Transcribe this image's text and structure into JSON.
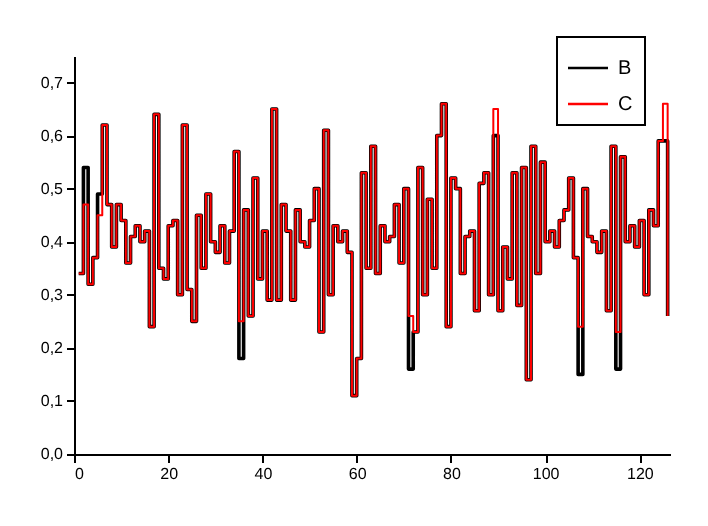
{
  "chart_data": {
    "type": "step",
    "legend": "top right",
    "grid": false,
    "line_style": "solid",
    "x": [
      1,
      2,
      3,
      4,
      5,
      6,
      7,
      8,
      9,
      10,
      11,
      12,
      13,
      14,
      15,
      16,
      17,
      18,
      19,
      20,
      21,
      22,
      23,
      24,
      25,
      26,
      27,
      28,
      29,
      30,
      31,
      32,
      33,
      34,
      35,
      36,
      37,
      38,
      39,
      40,
      41,
      42,
      43,
      44,
      45,
      46,
      47,
      48,
      49,
      50,
      51,
      52,
      53,
      54,
      55,
      56,
      57,
      58,
      59,
      60,
      61,
      62,
      63,
      64,
      65,
      66,
      67,
      68,
      69,
      70,
      71,
      72,
      73,
      74,
      75,
      76,
      77,
      78,
      79,
      80,
      81,
      82,
      83,
      84,
      85,
      86,
      87,
      88,
      89,
      90,
      91,
      92,
      93,
      94,
      95,
      96,
      97,
      98,
      99,
      100,
      101,
      102,
      103,
      104,
      105,
      106,
      107,
      108,
      109,
      110,
      111,
      112,
      113,
      114,
      115,
      116,
      117,
      118,
      119,
      120,
      121,
      122,
      123,
      124,
      125,
      126
    ],
    "xlim": [
      0,
      126.5
    ],
    "xticks": [
      0,
      20,
      40,
      60,
      80,
      100,
      120
    ],
    "ylim": [
      0,
      0.75
    ],
    "yticks": [
      {
        "value": 0,
        "label": "0,0"
      },
      {
        "value": 0.1,
        "label": "0,1"
      },
      {
        "value": 0.2,
        "label": "0,2"
      },
      {
        "value": 0.3,
        "label": "0,3"
      },
      {
        "value": 0.4,
        "label": "0,4"
      },
      {
        "value": 0.5,
        "label": "0,5"
      },
      {
        "value": 0.6,
        "label": "0,6"
      },
      {
        "value": 0.7,
        "label": "0,7"
      }
    ],
    "series": [
      {
        "name": "B",
        "color": "#000000",
        "values": [
          0.34,
          0.54,
          0.32,
          0.37,
          0.49,
          0.62,
          0.47,
          0.39,
          0.47,
          0.44,
          0.36,
          0.41,
          0.43,
          0.4,
          0.42,
          0.24,
          0.64,
          0.35,
          0.33,
          0.43,
          0.44,
          0.3,
          0.62,
          0.31,
          0.25,
          0.45,
          0.35,
          0.49,
          0.4,
          0.38,
          0.43,
          0.36,
          0.42,
          0.57,
          0.18,
          0.46,
          0.26,
          0.52,
          0.33,
          0.42,
          0.29,
          0.65,
          0.29,
          0.47,
          0.42,
          0.29,
          0.46,
          0.4,
          0.39,
          0.44,
          0.5,
          0.23,
          0.61,
          0.3,
          0.43,
          0.4,
          0.42,
          0.38,
          0.11,
          0.18,
          0.53,
          0.35,
          0.58,
          0.34,
          0.43,
          0.4,
          0.41,
          0.47,
          0.36,
          0.5,
          0.16,
          0.23,
          0.54,
          0.3,
          0.48,
          0.35,
          0.6,
          0.66,
          0.24,
          0.52,
          0.5,
          0.34,
          0.41,
          0.42,
          0.27,
          0.51,
          0.53,
          0.3,
          0.6,
          0.27,
          0.39,
          0.33,
          0.53,
          0.28,
          0.54,
          0.14,
          0.58,
          0.34,
          0.55,
          0.4,
          0.42,
          0.39,
          0.44,
          0.46,
          0.52,
          0.37,
          0.15,
          0.5,
          0.41,
          0.4,
          0.38,
          0.42,
          0.27,
          0.58,
          0.16,
          0.56,
          0.4,
          0.43,
          0.39,
          0.44,
          0.3,
          0.46,
          0.43,
          0.59,
          0.59,
          0.26
        ]
      },
      {
        "name": "C",
        "color": "#ff0000",
        "values": [
          0.34,
          0.47,
          0.32,
          0.37,
          0.45,
          0.62,
          0.47,
          0.39,
          0.47,
          0.44,
          0.36,
          0.41,
          0.43,
          0.4,
          0.42,
          0.24,
          0.64,
          0.35,
          0.33,
          0.43,
          0.44,
          0.3,
          0.62,
          0.31,
          0.25,
          0.45,
          0.35,
          0.49,
          0.4,
          0.38,
          0.43,
          0.36,
          0.42,
          0.57,
          0.25,
          0.46,
          0.26,
          0.52,
          0.33,
          0.42,
          0.29,
          0.65,
          0.29,
          0.47,
          0.42,
          0.29,
          0.46,
          0.4,
          0.39,
          0.44,
          0.5,
          0.23,
          0.61,
          0.3,
          0.43,
          0.4,
          0.42,
          0.38,
          0.11,
          0.18,
          0.53,
          0.35,
          0.58,
          0.34,
          0.43,
          0.4,
          0.41,
          0.47,
          0.36,
          0.5,
          0.26,
          0.23,
          0.54,
          0.3,
          0.48,
          0.35,
          0.6,
          0.66,
          0.24,
          0.52,
          0.5,
          0.34,
          0.41,
          0.42,
          0.27,
          0.51,
          0.53,
          0.3,
          0.65,
          0.27,
          0.39,
          0.33,
          0.53,
          0.28,
          0.54,
          0.14,
          0.58,
          0.34,
          0.55,
          0.4,
          0.42,
          0.39,
          0.44,
          0.46,
          0.52,
          0.37,
          0.24,
          0.5,
          0.41,
          0.4,
          0.38,
          0.42,
          0.27,
          0.58,
          0.23,
          0.56,
          0.4,
          0.43,
          0.39,
          0.44,
          0.3,
          0.46,
          0.43,
          0.59,
          0.66,
          0.26
        ]
      }
    ]
  }
}
